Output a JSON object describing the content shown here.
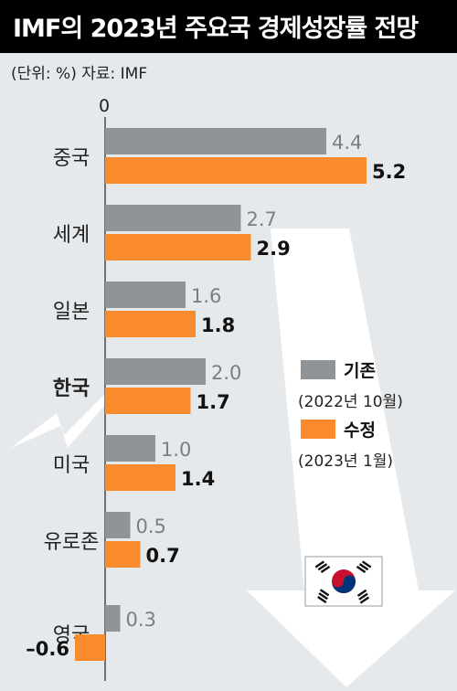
{
  "title": "IMF의 2023년 주요국 경제성장률 전망",
  "unit_note": "(단위: %)  자료: IMF",
  "colors": {
    "prior": "#8e9498",
    "revised": "#f98b2d",
    "highlight": "#e0261d",
    "background": "#e6e9ec",
    "arrow": "#ffffff"
  },
  "legend": {
    "prior_label": "기존",
    "prior_sub": "(2022년 10월)",
    "revised_label": "수정",
    "revised_sub": "(2023년 1월)"
  },
  "flag_icon": "korean-flag-icon",
  "chart_data": {
    "type": "bar",
    "orientation": "horizontal",
    "title": "IMF의 2023년 주요국 경제성장률 전망",
    "xlabel": "",
    "ylabel": "",
    "unit": "%",
    "axis_zero_label": "0",
    "categories": [
      "중국",
      "세계",
      "일본",
      "한국",
      "미국",
      "유로존",
      "영국"
    ],
    "highlighted_category": "한국",
    "series": [
      {
        "name": "기존",
        "values": [
          4.4,
          2.7,
          1.6,
          2.0,
          1.0,
          0.5,
          0.3
        ]
      },
      {
        "name": "수정",
        "values": [
          5.2,
          2.9,
          1.8,
          1.7,
          1.4,
          0.7,
          -0.6
        ]
      }
    ],
    "value_labels": {
      "기존": [
        "4.4",
        "2.7",
        "1.6",
        "2.0",
        "1.0",
        "0.5",
        "0.3"
      ],
      "수정": [
        "5.2",
        "2.9",
        "1.8",
        "1.7",
        "1.4",
        "0.7",
        "–0.6"
      ]
    },
    "xlim": [
      -0.6,
      5.2
    ],
    "grid": false,
    "legend_position": "right-middle"
  }
}
